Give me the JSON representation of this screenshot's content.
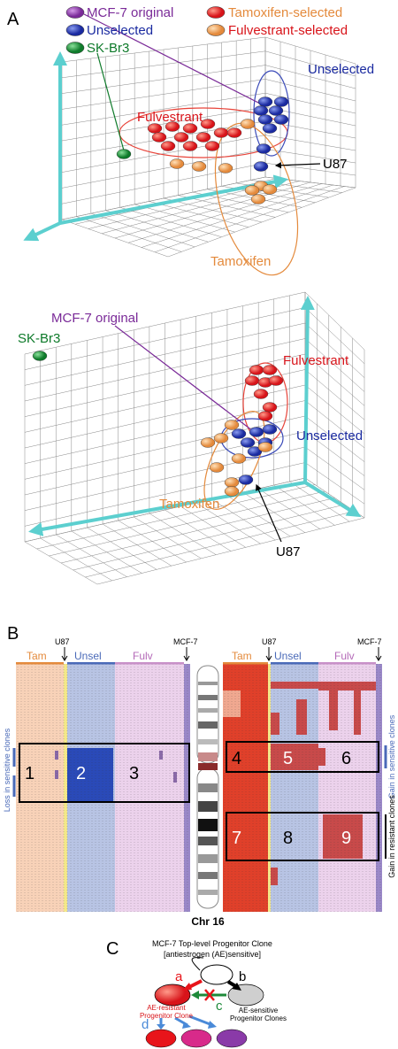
{
  "panel_a": {
    "label": "A",
    "legend": [
      "MCF-7 original",
      "Unselected",
      "SK-Br3",
      "Tamoxifen-selected",
      "Fulvestrant-selected"
    ],
    "top_plot": {
      "unselected": "Unselected",
      "fulvestrant": "Fulvestrant",
      "u87": "U87",
      "tamoxifen": "Tamoxifen"
    },
    "bottom_plot": {
      "mcf7": "MCF-7 original",
      "skbr3": "SK-Br3",
      "fulvestrant": "Fulvestrant",
      "unselected": "Unselected",
      "tamoxifen": "Tamoxifen",
      "u87": "U87"
    }
  },
  "panel_b": {
    "label": "B",
    "left_map": {
      "markers": [
        "U87",
        "MCF-7"
      ],
      "groups": [
        "Tam",
        "Unsel",
        "Fulv"
      ],
      "side_label": "Loss in sensitive clones",
      "boxes": [
        "1",
        "2",
        "3"
      ]
    },
    "chromosome": "Chr 16",
    "right_map": {
      "markers": [
        "U87",
        "MCF-7"
      ],
      "groups": [
        "Tam",
        "Unsel",
        "Fulv"
      ],
      "side_labels": [
        "Gain in sensitive clones",
        "Gain in resistant clones"
      ],
      "boxes": [
        "4",
        "5",
        "6",
        "7",
        "8",
        "9"
      ]
    }
  },
  "panel_c": {
    "label": "C",
    "title": [
      "MCF-7 Top-level Progenitor Clone",
      "[antiestrogen (AE)sensitive]"
    ],
    "arrows": [
      "a",
      "b",
      "c",
      "d"
    ],
    "resistant": [
      "AE-resistant",
      "Progenitor Clone"
    ],
    "sensitive": [
      "AE-sensitive",
      "Progenitor Clones"
    ]
  }
}
